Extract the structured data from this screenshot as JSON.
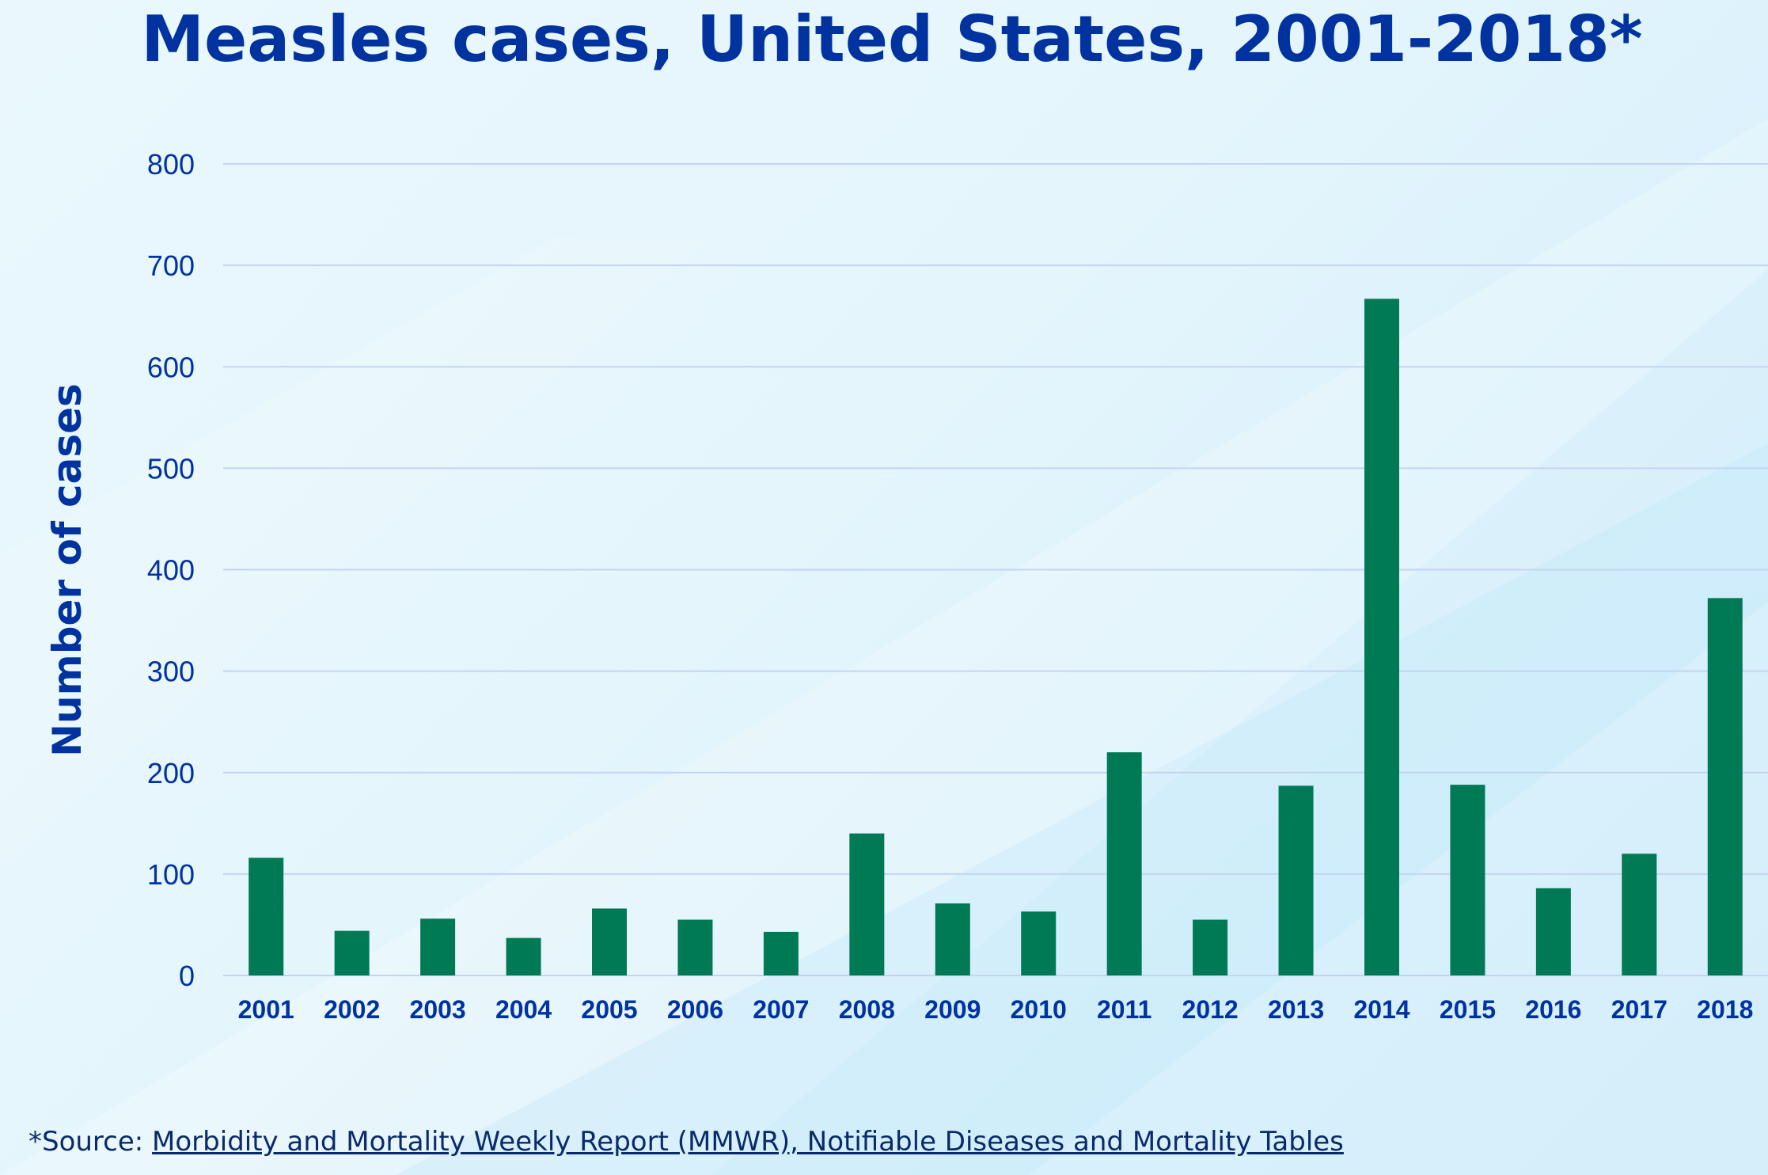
{
  "chart_data": {
    "type": "bar",
    "title": "Measles cases, United States, 2001-2018*",
    "xlabel": "",
    "ylabel": "Number of cases",
    "categories": [
      "2001",
      "2002",
      "2003",
      "2004",
      "2005",
      "2006",
      "2007",
      "2008",
      "2009",
      "2010",
      "2011",
      "2012",
      "2013",
      "2014",
      "2015",
      "2016",
      "2017",
      "2018"
    ],
    "values": [
      116,
      44,
      56,
      37,
      66,
      55,
      43,
      140,
      71,
      63,
      220,
      55,
      187,
      667,
      188,
      86,
      120,
      372
    ],
    "ylim": [
      0,
      800
    ],
    "yticks": [
      0,
      100,
      200,
      300,
      400,
      500,
      600,
      700,
      800
    ],
    "grid": true,
    "bar_color": "#007a55",
    "title_color": "#0033a0",
    "axis_text_color": "#0033a0",
    "gridline_color": "#c6d3f2"
  },
  "footer": {
    "prefix": "*Source: ",
    "link_text": "Morbidity and Mortality Weekly Report (MMWR), Notifiable Diseases and Mortality Tables"
  }
}
